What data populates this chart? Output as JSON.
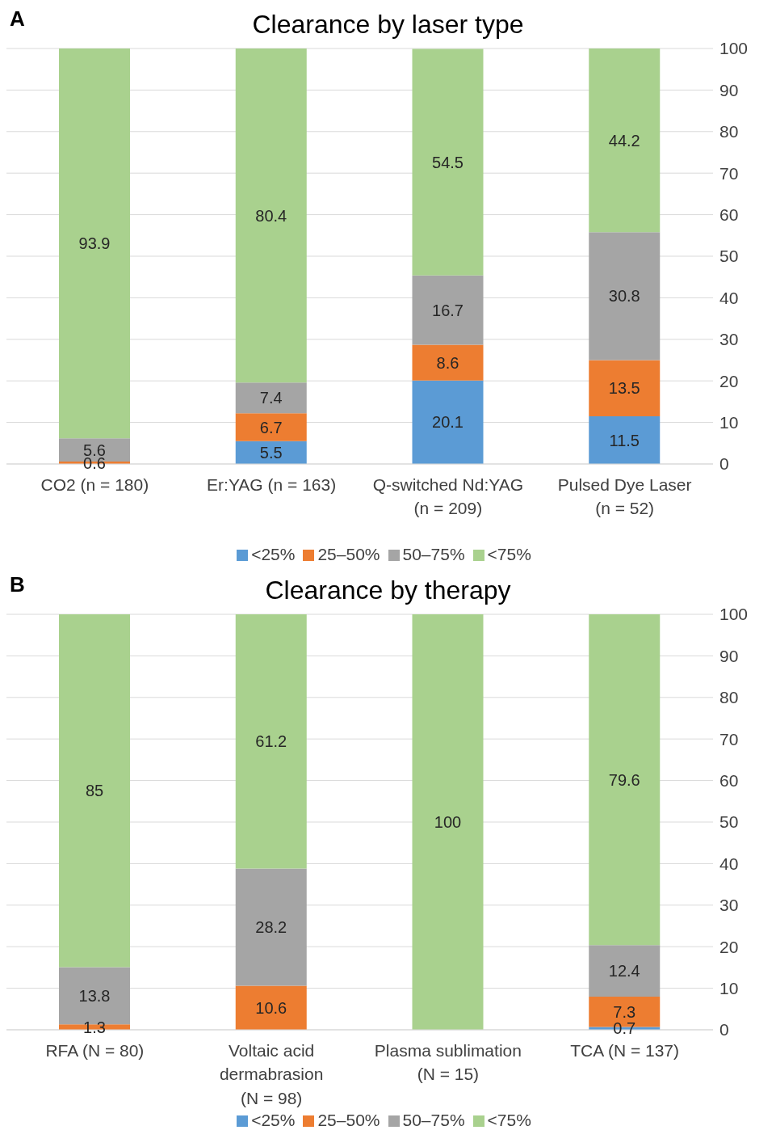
{
  "chart_data": [
    {
      "type": "bar",
      "title": "Clearance by laser type",
      "annotations": [
        "A"
      ],
      "stacked": true,
      "categories": [
        "CO2 (n = 180)",
        "Er:YAG (n = 163)",
        "Q-switched Nd:YAG (n = 209)",
        "Pulsed Dye Laser (n = 52)"
      ],
      "series": [
        {
          "name": "<25%",
          "color": "#5b9bd5",
          "values": [
            0,
            5.5,
            20.1,
            11.5
          ],
          "value_labels": [
            null,
            "5.5",
            "20.1",
            "11.5"
          ]
        },
        {
          "name": "25–50%",
          "color": "#ed7d31",
          "values": [
            0.6,
            6.7,
            8.6,
            13.5
          ],
          "value_labels": [
            "0.6",
            "6.7",
            "8.6",
            "13.5"
          ]
        },
        {
          "name": "50–75%",
          "color": "#a5a5a5",
          "values": [
            5.6,
            7.4,
            16.7,
            30.8
          ],
          "value_labels": [
            "5.6",
            "7.4",
            "16.7",
            "30.8"
          ]
        },
        {
          "name": "<75%",
          "color": "#a9d18e",
          "values": [
            93.9,
            80.4,
            54.5,
            44.2
          ],
          "value_labels": [
            "93.9",
            "80.4",
            "54.5",
            "44.2"
          ]
        }
      ],
      "ylim": [
        0,
        100
      ],
      "yticks": [
        0,
        10,
        20,
        30,
        40,
        50,
        60,
        70,
        80,
        90,
        100
      ],
      "grid": "y",
      "legend": "bottom"
    },
    {
      "type": "bar",
      "title": "Clearance by therapy",
      "annotations": [
        "B"
      ],
      "stacked": true,
      "categories": [
        "RFA (N = 80)",
        "Voltaic acid dermabrasion (N = 98)",
        "Plasma sublimation (N = 15)",
        "TCA (N = 137)"
      ],
      "series": [
        {
          "name": "<25%",
          "color": "#5b9bd5",
          "values": [
            0,
            0,
            0,
            0.7
          ],
          "value_labels": [
            null,
            null,
            null,
            "0.7"
          ]
        },
        {
          "name": "25–50%",
          "color": "#ed7d31",
          "values": [
            1.3,
            10.6,
            0,
            7.3
          ],
          "value_labels": [
            "1.3",
            "10.6",
            null,
            "7.3"
          ]
        },
        {
          "name": "50–75%",
          "color": "#a5a5a5",
          "values": [
            13.8,
            28.2,
            0,
            12.4
          ],
          "value_labels": [
            "13.8",
            "28.2",
            null,
            "12.4"
          ]
        },
        {
          "name": "<75%",
          "color": "#a9d18e",
          "values": [
            85,
            61.2,
            100,
            79.6
          ],
          "value_labels": [
            "85",
            "61.2",
            "100",
            "79.6"
          ]
        }
      ],
      "ylim": [
        0,
        100
      ],
      "yticks": [
        0,
        10,
        20,
        30,
        40,
        50,
        60,
        70,
        80,
        90,
        100
      ],
      "grid": "y",
      "legend": "bottom"
    }
  ]
}
